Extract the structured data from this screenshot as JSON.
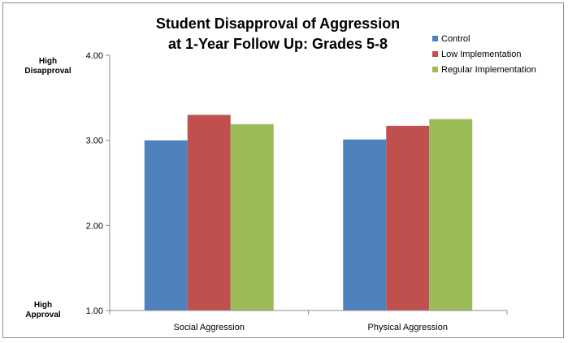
{
  "chart_data": {
    "type": "bar",
    "title_lines": [
      "Student Disapproval of Aggression",
      "at 1-Year Follow Up: Grades 5-8"
    ],
    "categories": [
      "Social Aggression",
      "Physical Aggression"
    ],
    "series": [
      {
        "name": "Control",
        "color": "#4f81bd",
        "values": [
          3.0,
          3.01
        ]
      },
      {
        "name": "Low Implementation",
        "color": "#c0504d",
        "values": [
          3.3,
          3.17
        ]
      },
      {
        "name": "Regular Implementation",
        "color": "#9bbb59",
        "values": [
          3.19,
          3.25
        ]
      }
    ],
    "ylim": [
      1.0,
      4.0
    ],
    "yticks": [
      "1.00",
      "2.00",
      "3.00",
      "4.00"
    ],
    "y_end_labels": {
      "top": [
        "High",
        "Disapproval"
      ],
      "bottom": [
        "High",
        "Approval"
      ]
    },
    "grid": false,
    "legend_position": "top-right"
  }
}
